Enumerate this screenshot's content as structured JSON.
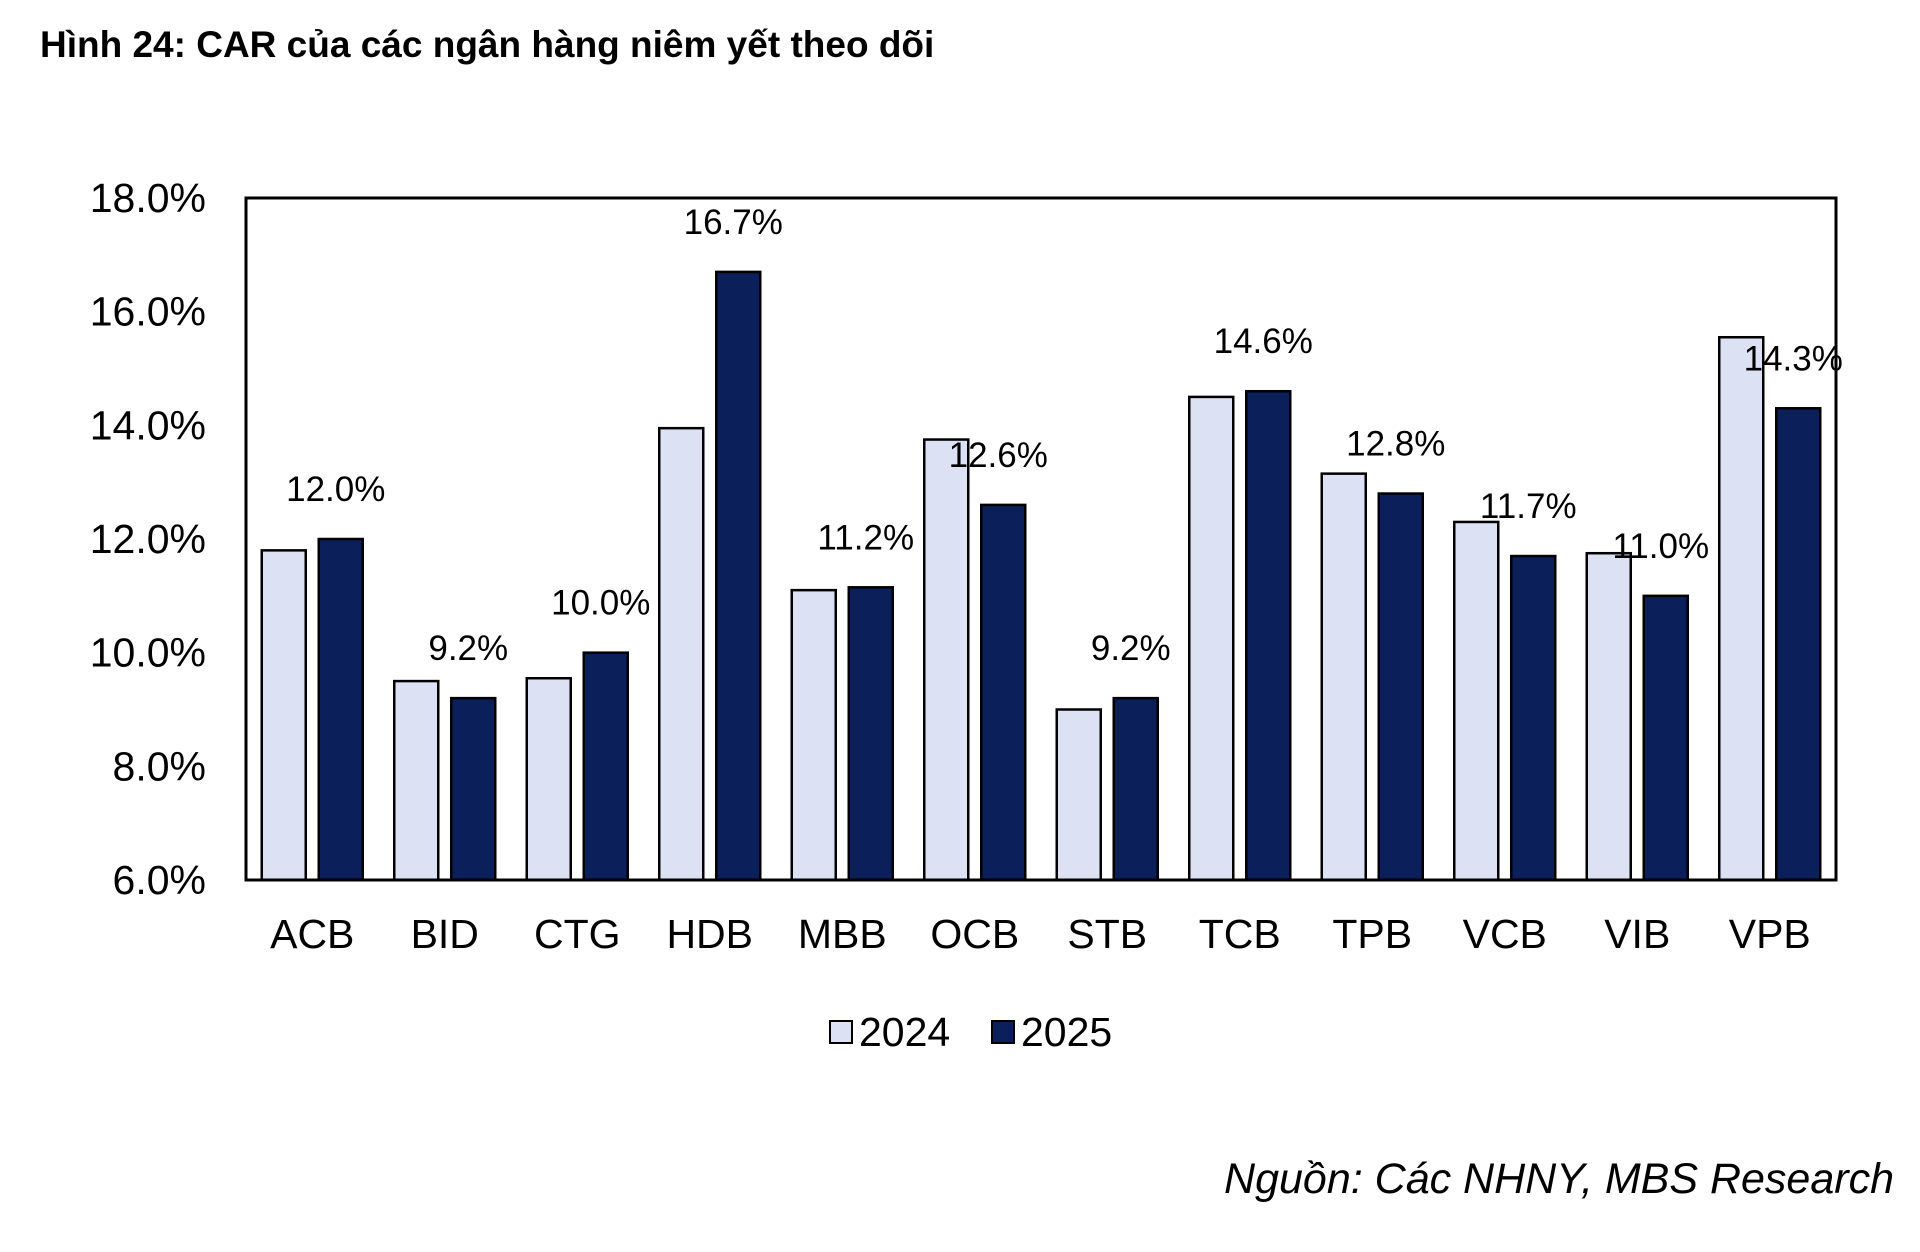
{
  "title": "Hình 24: CAR của các ngân hàng niêm yết theo dõi",
  "source": "Nguồn: Các NHNY, MBS Research",
  "colors": {
    "s2024": "#DCE2F3",
    "s2025": "#0B1F5B",
    "border": "#000000"
  },
  "chart_data": {
    "type": "bar",
    "categories": [
      "ACB",
      "BID",
      "CTG",
      "HDB",
      "MBB",
      "OCB",
      "STB",
      "TCB",
      "TPB",
      "VCB",
      "VIB",
      "VPB"
    ],
    "series": [
      {
        "name": "2024",
        "values": [
          11.8,
          9.5,
          9.55,
          13.95,
          11.1,
          13.75,
          9.0,
          14.5,
          13.15,
          12.3,
          11.75,
          15.55
        ]
      },
      {
        "name": "2025",
        "values": [
          12.0,
          9.2,
          10.0,
          16.7,
          11.15,
          12.6,
          9.2,
          14.6,
          12.8,
          11.7,
          11.0,
          14.3
        ]
      }
    ],
    "data_labels": [
      "12.0%",
      "9.2%",
      "10.0%",
      "16.7%",
      "11.2%",
      "12.6%",
      "9.2%",
      "14.6%",
      "12.8%",
      "11.7%",
      "11.0%",
      "14.3%"
    ],
    "ylim": [
      6,
      18
    ],
    "yticks": [
      6,
      8,
      10,
      12,
      14,
      16,
      18
    ],
    "ytick_labels": [
      "6.0%",
      "8.0%",
      "10.0%",
      "12.0%",
      "14.0%",
      "16.0%",
      "18.0%"
    ],
    "legend_position": "bottom",
    "grid": false
  }
}
